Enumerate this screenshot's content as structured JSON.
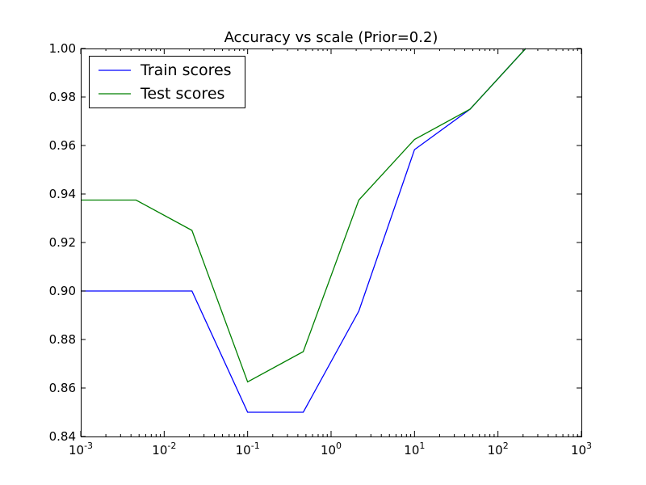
{
  "chart_data": {
    "type": "line",
    "title": "Accuracy vs scale (Prior=0.2)",
    "xlabel": "",
    "ylabel": "",
    "x_scale": "log",
    "xlim": [
      0.001,
      1000
    ],
    "ylim": [
      0.84,
      1.0
    ],
    "grid": false,
    "legend_position": "top-left",
    "x_ticks": [
      {
        "value": 0.001,
        "base": "10",
        "exp": "-3"
      },
      {
        "value": 0.01,
        "base": "10",
        "exp": "-2"
      },
      {
        "value": 0.1,
        "base": "10",
        "exp": "-1"
      },
      {
        "value": 1,
        "base": "10",
        "exp": "0"
      },
      {
        "value": 10,
        "base": "10",
        "exp": "1"
      },
      {
        "value": 100,
        "base": "10",
        "exp": "2"
      },
      {
        "value": 1000,
        "base": "10",
        "exp": "3"
      }
    ],
    "y_ticks": [
      {
        "value": 0.84,
        "label": "0.84"
      },
      {
        "value": 0.86,
        "label": "0.86"
      },
      {
        "value": 0.88,
        "label": "0.88"
      },
      {
        "value": 0.9,
        "label": "0.90"
      },
      {
        "value": 0.92,
        "label": "0.92"
      },
      {
        "value": 0.94,
        "label": "0.94"
      },
      {
        "value": 0.96,
        "label": "0.96"
      },
      {
        "value": 0.98,
        "label": "0.98"
      },
      {
        "value": 1.0,
        "label": "1.00"
      }
    ],
    "series": [
      {
        "name": "Train scores",
        "color": "#0000ff",
        "x": [
          0.001,
          0.0046,
          0.0215,
          0.1,
          0.464,
          2.15,
          10,
          46.4,
          215
        ],
        "y": [
          0.9,
          0.9,
          0.9,
          0.85,
          0.85,
          0.8917,
          0.9583,
          0.975,
          1.0
        ]
      },
      {
        "name": "Test scores",
        "color": "#008000",
        "x": [
          0.001,
          0.0046,
          0.0215,
          0.1,
          0.464,
          2.15,
          10,
          46.4,
          215
        ],
        "y": [
          0.9375,
          0.9375,
          0.925,
          0.8625,
          0.875,
          0.9375,
          0.9625,
          0.975,
          1.0
        ]
      }
    ]
  }
}
